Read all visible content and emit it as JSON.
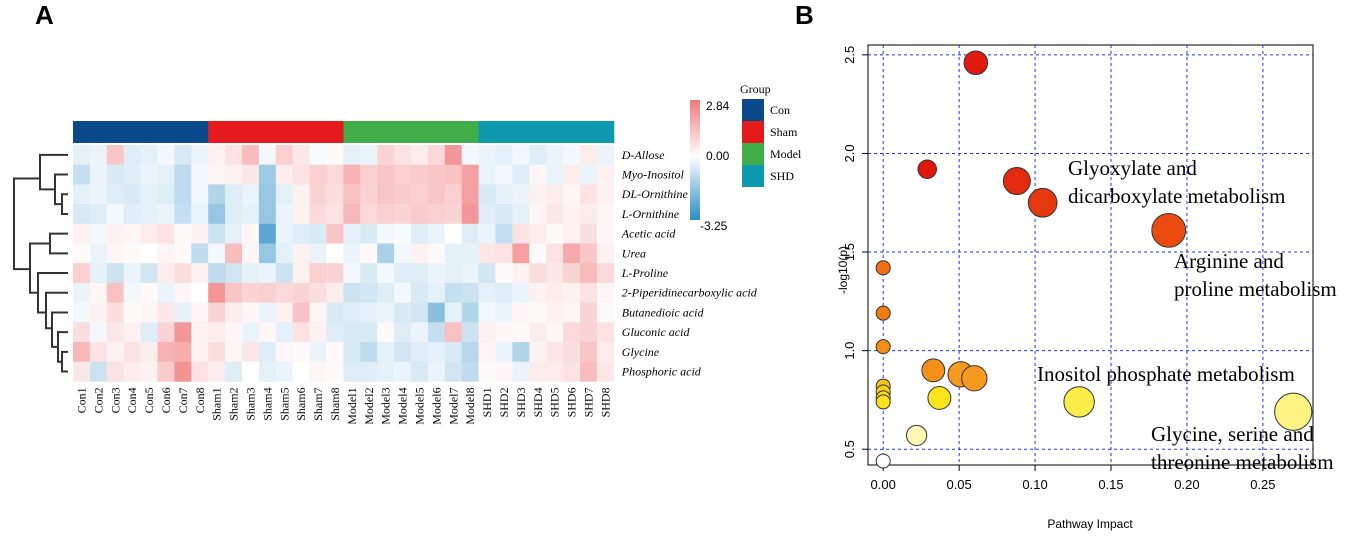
{
  "panels": {
    "a_label": "A",
    "b_label": "B"
  },
  "chart_data": [
    {
      "type": "heatmap",
      "title": "",
      "color_scale": {
        "max_label": "2.84",
        "mid_label": "0.00",
        "min_label": "-3.25",
        "max": 2.84,
        "mid": 0.0,
        "min": -3.25,
        "colors": {
          "high": "#f0787a",
          "mid": "#ffffff",
          "low": "#2b8cc4"
        }
      },
      "legend": {
        "title": "Group",
        "entries": [
          {
            "name": "Con",
            "color": "#0a4a8a"
          },
          {
            "name": "Sham",
            "color": "#e41a1c"
          },
          {
            "name": "Model",
            "color": "#3fae49"
          },
          {
            "name": "SHD",
            "color": "#0e9aae"
          }
        ]
      },
      "groups": [
        "Con",
        "Con",
        "Con",
        "Con",
        "Con",
        "Con",
        "Con",
        "Con",
        "Sham",
        "Sham",
        "Sham",
        "Sham",
        "Sham",
        "Sham",
        "Sham",
        "Sham",
        "Model",
        "Model",
        "Model",
        "Model",
        "Model",
        "Model",
        "Model",
        "Model",
        "SHD",
        "SHD",
        "SHD",
        "SHD",
        "SHD",
        "SHD",
        "SHD",
        "SHD"
      ],
      "columns": [
        "Con1",
        "Con2",
        "Con3",
        "Con4",
        "Con5",
        "Con6",
        "Con7",
        "Con8",
        "Sham1",
        "Sham2",
        "Sham3",
        "Sham4",
        "Sham5",
        "Sham6",
        "Sham7",
        "Sham8",
        "Model1",
        "Model2",
        "Model3",
        "Model4",
        "Model5",
        "Model6",
        "Model7",
        "Model8",
        "SHD1",
        "SHD2",
        "SHD3",
        "SHD4",
        "SHD5",
        "SHD6",
        "SHD7",
        "SHD8"
      ],
      "rows": [
        "D-Allose",
        "Myo-Inositol",
        "DL-Ornithine",
        "L-Ornithine",
        "Acetic acid",
        "Urea",
        "L-Proline",
        "2-Piperidinecarboxylic acid",
        "Butanedioic acid",
        "Gluconic acid",
        "Glycine",
        "Phosphoric acid"
      ],
      "values": [
        [
          -0.4,
          -0.3,
          1.2,
          -0.5,
          -0.4,
          -0.2,
          -0.6,
          -0.3,
          0.3,
          0.6,
          1.4,
          -0.2,
          1.0,
          0.5,
          -0.1,
          0.1,
          -0.4,
          -0.3,
          0.9,
          0.6,
          0.4,
          0.8,
          2.2,
          -0.2,
          -0.3,
          -0.4,
          -0.2,
          -0.5,
          -0.3,
          -0.2,
          0.4,
          -0.3
        ],
        [
          -0.9,
          -0.3,
          -0.6,
          -0.5,
          -0.3,
          -0.4,
          -1.0,
          -0.2,
          0.2,
          0.3,
          0.5,
          -1.5,
          0.4,
          0.6,
          1.0,
          0.8,
          1.6,
          1.0,
          1.2,
          1.0,
          1.1,
          1.2,
          1.3,
          2.0,
          -0.3,
          -0.2,
          -0.5,
          0.2,
          -0.3,
          0.4,
          -0.3,
          0.3
        ],
        [
          -0.4,
          -0.3,
          -0.5,
          -0.6,
          -0.4,
          -0.5,
          -1.0,
          -0.2,
          -1.2,
          -0.5,
          -0.3,
          -1.6,
          -0.4,
          0.3,
          0.9,
          0.7,
          1.3,
          0.9,
          1.2,
          1.1,
          1.0,
          1.2,
          1.0,
          2.0,
          -0.6,
          -0.4,
          -0.3,
          0.3,
          0.4,
          0.2,
          0.6,
          0.3
        ],
        [
          -0.6,
          -0.5,
          -0.2,
          -0.5,
          -0.4,
          -0.3,
          -0.9,
          -0.3,
          -1.6,
          -0.5,
          -0.4,
          -1.6,
          -0.3,
          0.3,
          0.8,
          0.6,
          1.5,
          0.8,
          1.0,
          0.9,
          1.1,
          1.0,
          0.9,
          2.2,
          -0.5,
          -0.6,
          -0.4,
          0.2,
          0.5,
          0.3,
          0.4,
          0.2
        ],
        [
          0.3,
          -0.2,
          0.3,
          0.2,
          0.4,
          0.6,
          0.1,
          0.3,
          -0.8,
          -0.4,
          0.2,
          -2.5,
          -0.3,
          -0.5,
          -0.6,
          1.2,
          -0.4,
          -0.6,
          -0.2,
          -0.1,
          -0.5,
          -0.3,
          0.0,
          -0.5,
          -0.3,
          -0.9,
          0.6,
          0.4,
          0.1,
          0.3,
          0.7,
          0.2
        ],
        [
          0.1,
          -0.3,
          0.2,
          0.1,
          0.0,
          0.2,
          0.1,
          -1.0,
          -0.2,
          1.4,
          0.2,
          -1.6,
          -0.4,
          0.3,
          -0.3,
          0.0,
          -0.3,
          0.1,
          -1.3,
          -0.2,
          0.3,
          0.1,
          -0.4,
          -0.4,
          0.5,
          0.6,
          2.0,
          0.1,
          0.6,
          1.8,
          1.2,
          0.3
        ],
        [
          1.0,
          -0.4,
          -0.8,
          -0.3,
          -0.7,
          0.4,
          0.7,
          0.3,
          -1.0,
          -0.7,
          -0.4,
          -0.3,
          -0.8,
          0.3,
          1.0,
          0.9,
          -0.2,
          -0.6,
          -0.2,
          -0.5,
          -0.5,
          -0.3,
          -0.4,
          -0.3,
          -0.7,
          0.1,
          0.3,
          0.7,
          0.5,
          0.9,
          1.4,
          0.8
        ],
        [
          -0.3,
          0.2,
          1.3,
          -0.2,
          0.1,
          -0.3,
          0.2,
          0.0,
          2.2,
          1.2,
          0.9,
          1.0,
          0.8,
          0.9,
          0.7,
          0.4,
          -0.8,
          -0.7,
          -0.5,
          -0.2,
          -0.6,
          -0.4,
          -0.9,
          -0.8,
          -0.4,
          -0.5,
          -0.3,
          0.3,
          0.4,
          0.3,
          0.6,
          0.2
        ],
        [
          -0.2,
          0.3,
          0.7,
          0.1,
          0.2,
          0.5,
          -0.4,
          0.2,
          0.9,
          0.4,
          0.2,
          -0.3,
          0.3,
          1.3,
          0.2,
          -0.6,
          -0.5,
          -0.4,
          -0.3,
          -0.6,
          -0.7,
          -1.8,
          -0.4,
          -1.2,
          -0.2,
          -0.3,
          0.2,
          0.1,
          0.3,
          0.2,
          0.9,
          0.1
        ],
        [
          0.7,
          -0.2,
          0.5,
          0.3,
          -0.5,
          0.9,
          2.2,
          0.3,
          0.4,
          0.2,
          -0.3,
          0.2,
          -0.4,
          0.6,
          0.3,
          -0.5,
          -0.6,
          -0.6,
          0.1,
          -0.5,
          -0.3,
          -0.9,
          1.3,
          -0.8,
          0.3,
          0.2,
          0.1,
          0.4,
          0.2,
          0.8,
          0.9,
          0.6
        ],
        [
          1.5,
          0.6,
          0.3,
          0.6,
          0.4,
          1.6,
          1.7,
          0.3,
          0.7,
          0.2,
          0.5,
          -0.5,
          0.2,
          0.1,
          -0.3,
          0.1,
          -0.6,
          -1.0,
          -0.4,
          -0.7,
          -0.5,
          -0.4,
          -0.6,
          -1.1,
          0.2,
          -0.3,
          -1.2,
          0.3,
          0.5,
          0.7,
          1.2,
          0.4
        ],
        [
          0.5,
          -0.8,
          0.6,
          0.4,
          0.3,
          1.1,
          2.3,
          0.6,
          0.4,
          -0.5,
          0.0,
          -0.4,
          -0.3,
          0.0,
          0.2,
          0.1,
          -0.5,
          -0.5,
          -0.4,
          -0.3,
          -0.6,
          -0.3,
          -0.7,
          -1.0,
          0.1,
          0.2,
          -0.3,
          0.4,
          0.4,
          0.6,
          1.4,
          0.5
        ]
      ],
      "dendrogram": "rows clustered"
    },
    {
      "type": "scatter",
      "title": "",
      "xlabel": "Pathway Impact",
      "ylabel": "-log10(p)",
      "xlim": [
        -0.01,
        0.283
      ],
      "ylim": [
        0.42,
        2.55
      ],
      "grid": true,
      "xticks": [
        "0.00",
        "0.05",
        "0.10",
        "0.15",
        "0.20",
        "0.25"
      ],
      "yticks": [
        "0.5",
        "1.0",
        "1.5",
        "2.0",
        "2.5"
      ],
      "points": [
        {
          "x": 0.061,
          "y": 2.46,
          "size": 0.4,
          "color": "#e01a12"
        },
        {
          "x": 0.029,
          "y": 1.92,
          "size": 0.25,
          "color": "#e0170f"
        },
        {
          "x": 0.088,
          "y": 1.86,
          "size": 0.5,
          "color": "#e32a10"
        },
        {
          "x": 0.105,
          "y": 1.75,
          "size": 0.55,
          "color": "#e5380f"
        },
        {
          "x": 0.188,
          "y": 1.61,
          "size": 0.7,
          "color": "#ec4b10"
        },
        {
          "x": 0.0,
          "y": 1.42,
          "size": 0.12,
          "color": "#ef6f12"
        },
        {
          "x": 0.0,
          "y": 1.19,
          "size": 0.12,
          "color": "#f07c14"
        },
        {
          "x": 0.0,
          "y": 1.02,
          "size": 0.12,
          "color": "#f38e16"
        },
        {
          "x": 0.033,
          "y": 0.9,
          "size": 0.38,
          "color": "#f39019"
        },
        {
          "x": 0.051,
          "y": 0.88,
          "size": 0.45,
          "color": "#f59a1e"
        },
        {
          "x": 0.06,
          "y": 0.86,
          "size": 0.45,
          "color": "#f59a1e"
        },
        {
          "x": 0.0,
          "y": 0.82,
          "size": 0.12,
          "color": "#f8c419"
        },
        {
          "x": 0.0,
          "y": 0.79,
          "size": 0.12,
          "color": "#f8d01a"
        },
        {
          "x": 0.0,
          "y": 0.76,
          "size": 0.12,
          "color": "#f9da1c"
        },
        {
          "x": 0.0,
          "y": 0.74,
          "size": 0.12,
          "color": "#fbe21d"
        },
        {
          "x": 0.037,
          "y": 0.76,
          "size": 0.38,
          "color": "#fbe41d"
        },
        {
          "x": 0.129,
          "y": 0.74,
          "size": 0.6,
          "color": "#fbec47"
        },
        {
          "x": 0.27,
          "y": 0.69,
          "size": 0.8,
          "color": "#fcf382"
        },
        {
          "x": 0.022,
          "y": 0.57,
          "size": 0.3,
          "color": "#fdf6b4"
        },
        {
          "x": 0.0,
          "y": 0.44,
          "size": 0.12,
          "color": "#ffffff"
        }
      ],
      "annotations": [
        {
          "lines": [
            "Glyoxylate and",
            "dicarboxylate metabolism"
          ]
        },
        {
          "lines": [
            "Arginine and",
            "proline metabolism"
          ]
        },
        {
          "lines": [
            "Inositol phosphate metabolism"
          ]
        },
        {
          "lines": [
            "Glycine, serine and",
            "threonine metabolism"
          ]
        }
      ]
    }
  ]
}
